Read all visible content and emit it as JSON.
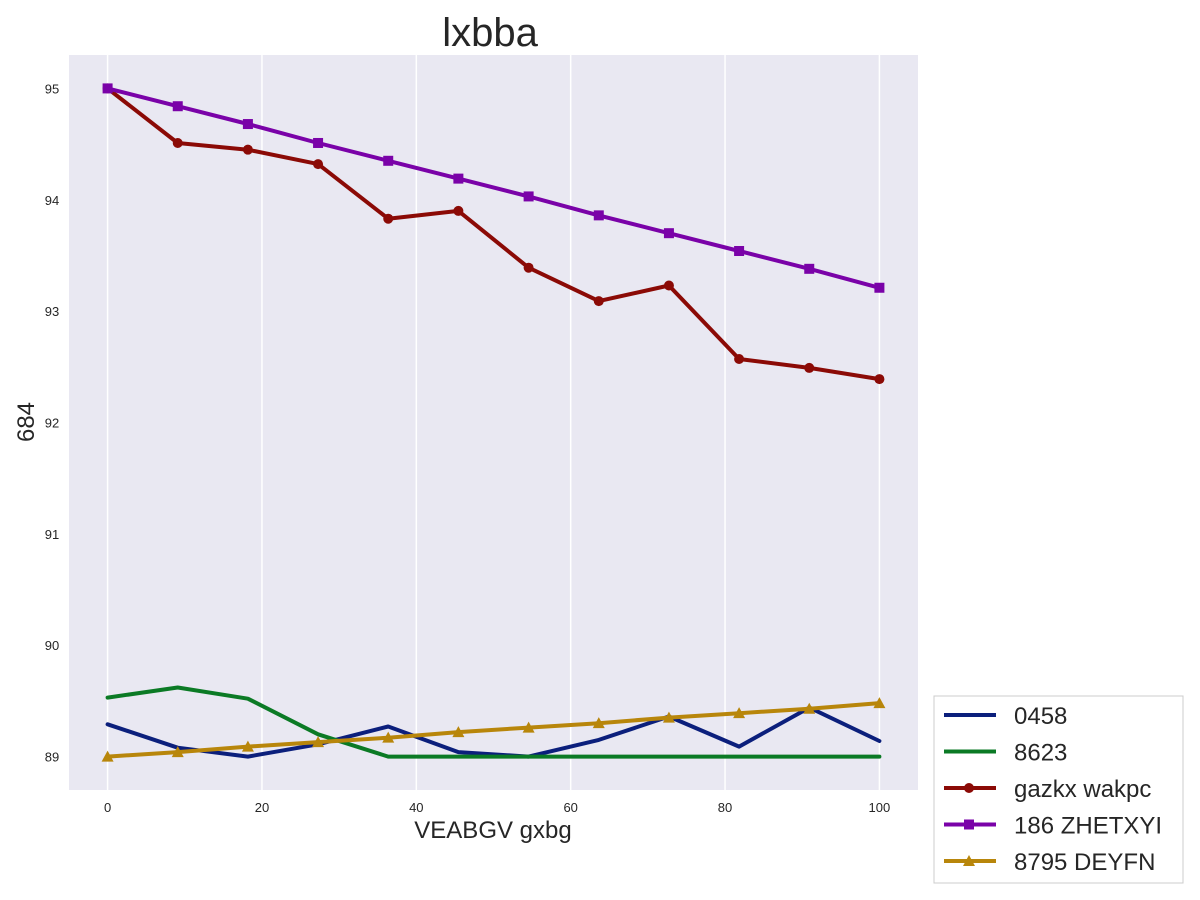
{
  "chart_data": {
    "type": "line",
    "title": "lxbba",
    "xlabel": "VEABGV gxbg",
    "ylabel": "684",
    "xlim": [
      -5,
      105
    ],
    "ylim": [
      88.7,
      95.3
    ],
    "xticks": [
      0,
      20,
      40,
      60,
      80,
      100
    ],
    "yticks": [
      89,
      90,
      91,
      92,
      93,
      94,
      95
    ],
    "grid": "vertical",
    "legend_position": "bottom-right",
    "colors": {
      "plot_background": "#e9e8f2",
      "grid": "#ffffff"
    },
    "series": [
      {
        "name": "0458",
        "color": "#0b1f7c",
        "marker": "none",
        "x": [
          0,
          9.09,
          18.18,
          27.27,
          36.36,
          45.45,
          54.55,
          63.64,
          72.73,
          81.82,
          90.91,
          100
        ],
        "y": [
          89.29,
          89.08,
          89.0,
          89.11,
          89.27,
          89.04,
          89.0,
          89.15,
          89.36,
          89.09,
          89.44,
          89.14
        ]
      },
      {
        "name": "8623",
        "color": "#0b7a25",
        "marker": "none",
        "x": [
          0,
          9.09,
          18.18,
          27.27,
          36.36,
          45.45,
          54.55,
          63.64,
          72.73,
          81.82,
          90.91,
          100
        ],
        "y": [
          89.53,
          89.62,
          89.52,
          89.2,
          89.0,
          89.0,
          89.0,
          89.0,
          89.0,
          89.0,
          89.0,
          89.0
        ]
      },
      {
        "name": "gazkx wakpc",
        "color": "#8b0a06",
        "marker": "circle",
        "x": [
          0,
          9.09,
          18.18,
          27.27,
          36.36,
          45.45,
          54.55,
          63.64,
          72.73,
          81.82,
          90.91,
          100
        ],
        "y": [
          95.0,
          94.51,
          94.45,
          94.32,
          93.83,
          93.9,
          93.39,
          93.09,
          93.23,
          92.57,
          92.49,
          92.39
        ]
      },
      {
        "name": "186 ZHETXYI",
        "color": "#7a02a8",
        "marker": "square",
        "x": [
          0,
          9.09,
          18.18,
          27.27,
          36.36,
          45.45,
          54.55,
          63.64,
          72.73,
          81.82,
          90.91,
          100
        ],
        "y": [
          95.0,
          94.84,
          94.68,
          94.51,
          94.35,
          94.19,
          94.03,
          93.86,
          93.7,
          93.54,
          93.38,
          93.21
        ]
      },
      {
        "name": "8795 DEYFN",
        "color": "#b8860b",
        "marker": "triangle",
        "x": [
          0,
          9.09,
          18.18,
          27.27,
          36.36,
          45.45,
          54.55,
          63.64,
          72.73,
          81.82,
          90.91,
          100
        ],
        "y": [
          89.0,
          89.04,
          89.09,
          89.13,
          89.17,
          89.22,
          89.26,
          89.3,
          89.35,
          89.39,
          89.43,
          89.48
        ]
      }
    ]
  }
}
